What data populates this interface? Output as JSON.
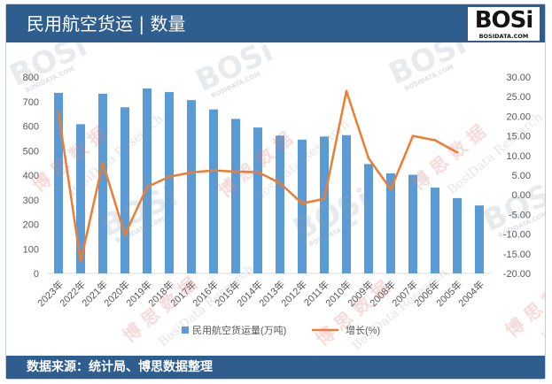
{
  "header": {
    "title": "民用航空货运 | 数量"
  },
  "logo": {
    "mark": "BOSi",
    "site": "BOSIDATA.COM"
  },
  "footer": {
    "source": "数据来源：统计局、博思数据整理"
  },
  "watermark": {
    "mark": "BOSi",
    "site": "BOSIDATA.COM",
    "cn": "博思数据",
    "en": "BosiData Research"
  },
  "theme": {
    "header_bg": "#2E5D8E",
    "footer_bg": "#2E5D8E",
    "axis_line": "#D9D9D9"
  },
  "chart_data": {
    "type": "bar",
    "categories": [
      "2023年",
      "2022年",
      "2021年",
      "2020年",
      "2019年",
      "2018年",
      "2017年",
      "2016年",
      "2015年",
      "2014年",
      "2013年",
      "2012年",
      "2011年",
      "2010年",
      "2009年",
      "2008年",
      "2007年",
      "2006年",
      "2005年",
      "2004年"
    ],
    "series": [
      {
        "name": "民用航空货运量(万吨)",
        "type": "bar",
        "axis": "left",
        "color": "#5B9BD5",
        "values": [
          735.4,
          607.6,
          731.8,
          676.6,
          753.1,
          738.5,
          705.9,
          668,
          629.3,
          594.1,
          561.3,
          545,
          557.5,
          563,
          445.5,
          407.6,
          401.8,
          349.4,
          306.7,
          276.7
        ]
      },
      {
        "name": "增长(%)",
        "type": "line",
        "axis": "right",
        "color": "#ED7D31",
        "values": [
          21.0,
          -17.0,
          8.2,
          -10.2,
          2.0,
          4.6,
          5.7,
          6.2,
          5.9,
          5.8,
          3.0,
          -2.2,
          -1.0,
          26.4,
          9.3,
          1.4,
          15.0,
          13.9,
          10.8,
          null
        ]
      }
    ],
    "y_left": {
      "min": 0,
      "max": 800,
      "step": 100,
      "tick_labels": [
        "0",
        "100",
        "200",
        "300",
        "400",
        "500",
        "600",
        "700",
        "800"
      ]
    },
    "y_right": {
      "min": -20,
      "max": 30,
      "step": 5,
      "tick_labels": [
        "-20.00",
        "-15.00",
        "-10.00",
        "-5.00",
        "0.00",
        "5.00",
        "10.00",
        "15.00",
        "20.00",
        "25.00",
        "30.00"
      ]
    },
    "grid": false,
    "legend": "bottom"
  }
}
